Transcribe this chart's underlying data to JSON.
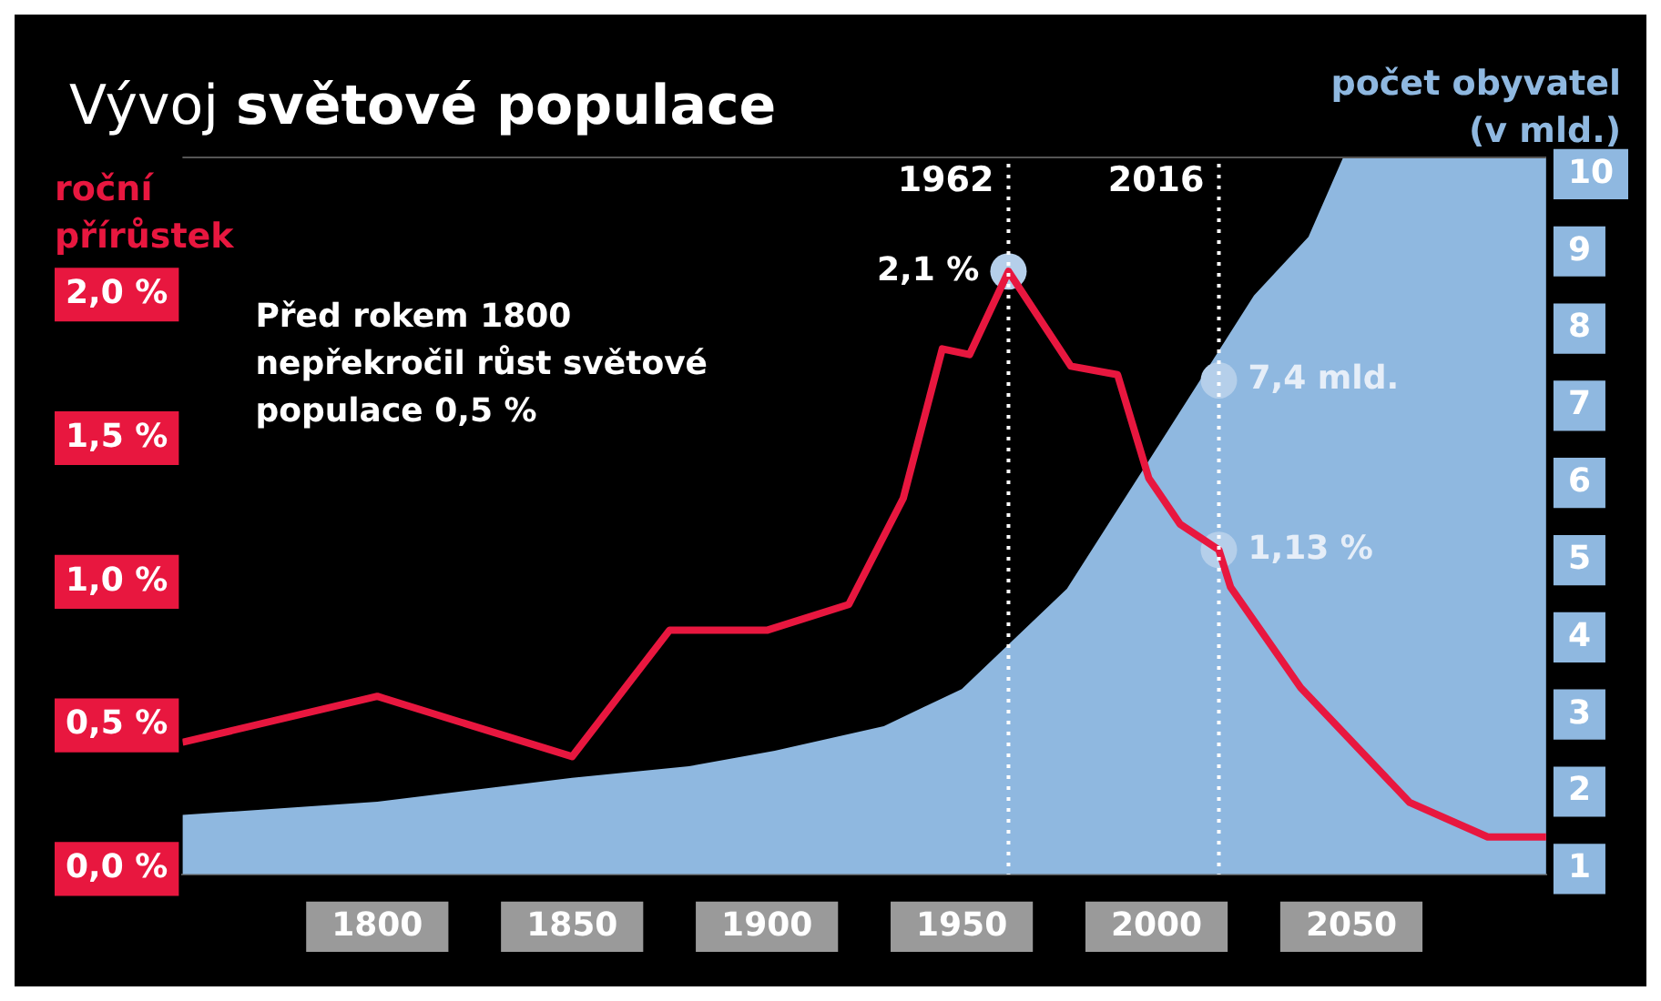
{
  "chart_data": {
    "type": "area",
    "title": "Vývoj světové populace",
    "ylabel": "roční přírůstek",
    "y2label": "počet obyvatel (v mld.)",
    "xlim": [
      1750,
      2100
    ],
    "xticks": [
      1800,
      1850,
      1900,
      1950,
      2000,
      2050
    ],
    "ylim": [
      0,
      2.5
    ],
    "yticks": [
      {
        "value": 0,
        "label": "0,0 %"
      },
      {
        "value": 0.5,
        "label": "0,5 %"
      },
      {
        "value": 1,
        "label": "1,0 %"
      },
      {
        "value": 1.5,
        "label": "1,5 %"
      },
      {
        "value": 2,
        "label": "2,0 %"
      }
    ],
    "y2lim": [
      1,
      10.3
    ],
    "y2ticks": [
      1,
      2,
      3,
      4,
      5,
      6,
      7,
      8,
      9,
      10
    ],
    "series": [
      {
        "axis": "y2",
        "color": "#8fb8e0",
        "x": [
          1750,
          1800,
          1850,
          1880,
          1902,
          1930,
          1950,
          1977,
          1996,
          2025,
          2039,
          2048,
          2100
        ],
        "values": [
          1.77,
          1.94,
          2.25,
          2.4,
          2.6,
          2.92,
          3.4,
          4.7,
          6.2,
          8.5,
          9.26,
          10.3,
          10.3
        ]
      },
      {
        "type": "line",
        "color": "#e8173f",
        "x": [
          1750,
          1800,
          1850,
          1875,
          1900,
          1921,
          1935,
          1945,
          1952,
          1962,
          1978,
          1990,
          1998,
          2006,
          2016,
          2019,
          2037,
          2065,
          2085,
          2100
        ],
        "values": [
          0.46,
          0.62,
          0.41,
          0.85,
          0.85,
          0.94,
          1.31,
          1.83,
          1.81,
          2.1,
          1.77,
          1.74,
          1.38,
          1.22,
          1.13,
          1.0,
          0.65,
          0.25,
          0.13,
          0.13
        ]
      },
      {
        "type": "scatter",
        "color": "#b5cfea",
        "x": [
          1962,
          2016
        ],
        "values": [
          2.1,
          1.13
        ]
      },
      {
        "type": "scatter",
        "axis": "y2",
        "color": "#b5cfea",
        "x": [
          2016
        ],
        "values": [
          7.4
        ]
      }
    ],
    "ref_lines": [
      {
        "axis": "x",
        "value": 1962,
        "label": "1962",
        "color": "#ffffff",
        "line_style": "dotted"
      },
      {
        "axis": "x",
        "value": 2016,
        "label": "2016",
        "color": "#ffffff",
        "line_style": "dotted"
      }
    ],
    "annotations": [
      "Před rokem 1800 nepřekročil růst světové populace 0,5 %",
      "2,1 %",
      "1,13 %",
      "7,4 mld."
    ],
    "legend": false,
    "line_style": "solid"
  }
}
